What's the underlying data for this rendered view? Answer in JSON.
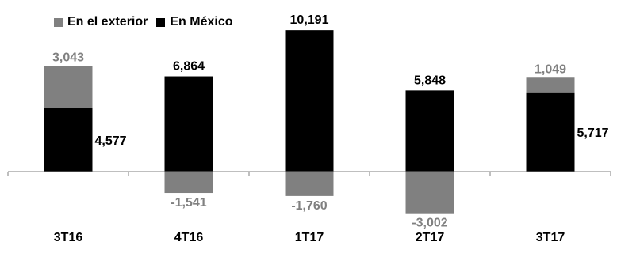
{
  "chart_data": {
    "type": "bar",
    "stacked": true,
    "categories": [
      "3T16",
      "4T16",
      "1T17",
      "2T17",
      "3T17"
    ],
    "series": [
      {
        "name": "En el exterior",
        "color": "#808080",
        "values": [
          3043,
          -1541,
          -1760,
          -3002,
          1049
        ],
        "labels": [
          "3,043",
          "-1,541",
          "-1,760",
          "-3,002",
          "1,049"
        ]
      },
      {
        "name": "En México",
        "color": "#000000",
        "values": [
          4577,
          6864,
          10191,
          5848,
          5717
        ],
        "labels": [
          "4,577",
          "6,864",
          "10,191",
          "5,848",
          "5,717"
        ]
      }
    ],
    "ylim": [
      -3500,
      10400
    ],
    "grid": false,
    "legend_position": "top-left"
  }
}
